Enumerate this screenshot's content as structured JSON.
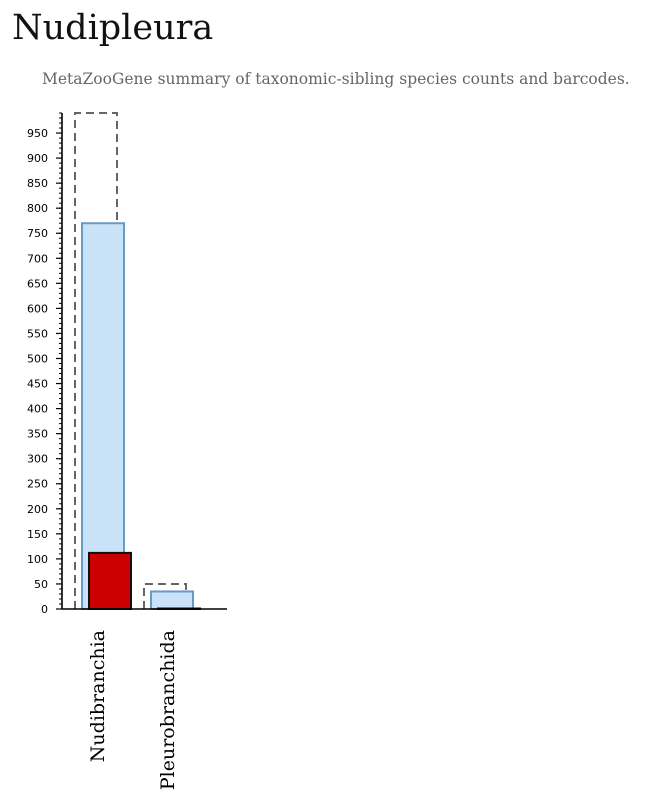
{
  "page": {
    "title": "Nudipleura",
    "subtitle": "MetaZooGene summary of taxonomic-sibling species counts and barcodes."
  },
  "colors": {
    "outline_dash": "#666666",
    "bar_fill": "#c9e2f8",
    "bar_stroke": "#6a99c6",
    "barcode_fill": "#cc0000",
    "barcode_stroke": "#111111",
    "axis": "#000000"
  },
  "chart_data": {
    "type": "bar",
    "categories": [
      "Nudibranchia",
      "Pleurobranchida"
    ],
    "series": [
      {
        "style": "dashed-outline",
        "values": [
          990,
          50
        ]
      },
      {
        "style": "light-blue",
        "values": [
          770,
          35
        ]
      },
      {
        "style": "red",
        "values": [
          112,
          1
        ]
      }
    ],
    "ylim": [
      0,
      990
    ],
    "y_ticks": [
      0,
      50,
      100,
      150,
      200,
      250,
      300,
      350,
      400,
      450,
      500,
      550,
      600,
      650,
      700,
      750,
      800,
      850,
      900,
      950
    ],
    "y_minor_step": 10,
    "grid": false,
    "legend": "none"
  }
}
